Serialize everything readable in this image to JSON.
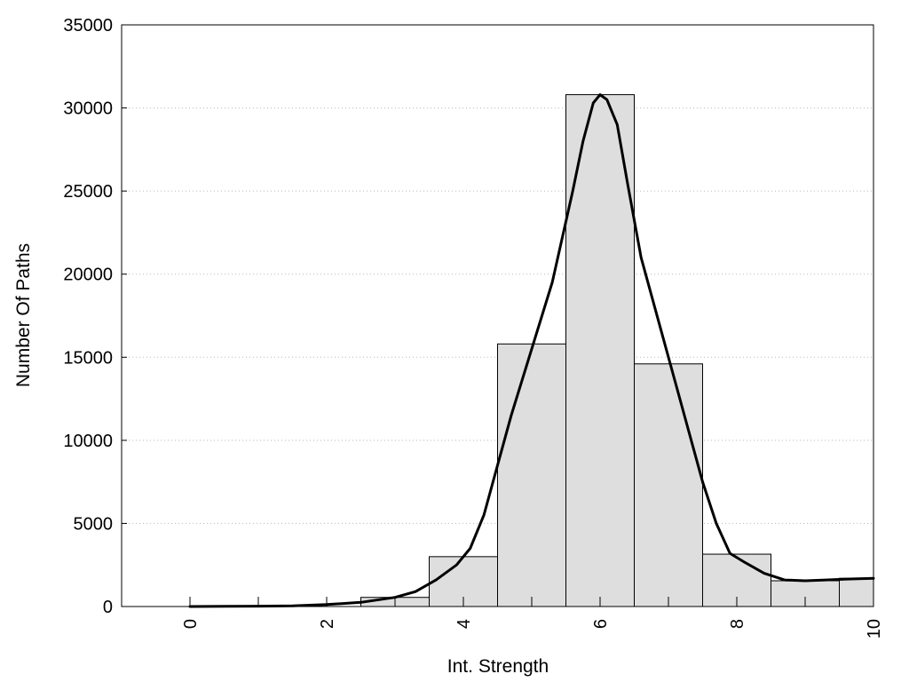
{
  "chart_data": {
    "type": "bar",
    "xlabel": "Int. Strength",
    "ylabel": "Number Of Paths",
    "xlim": [
      -1,
      10
    ],
    "ylim": [
      0,
      35000
    ],
    "xticks": [
      "0",
      "2",
      "4",
      "6",
      "8",
      "10"
    ],
    "yticks": [
      "0",
      "5000",
      "10000",
      "15000",
      "20000",
      "25000",
      "30000",
      "35000"
    ],
    "grid": "horizontal-dotted",
    "bar_color": "#dedede",
    "bars": [
      {
        "x": 0,
        "value": 0
      },
      {
        "x": 1,
        "value": 0
      },
      {
        "x": 2,
        "value": 0
      },
      {
        "x": 3,
        "value": 550
      },
      {
        "x": 4,
        "value": 3000
      },
      {
        "x": 5,
        "value": 15800
      },
      {
        "x": 6,
        "value": 30800
      },
      {
        "x": 7,
        "value": 14600
      },
      {
        "x": 8,
        "value": 3150
      },
      {
        "x": 9,
        "value": 1550
      },
      {
        "x": 10,
        "value": 1700
      }
    ],
    "curve": {
      "x": [
        0,
        1,
        1.5,
        2,
        2.5,
        3,
        3.3,
        3.6,
        3.9,
        4.1,
        4.3,
        4.5,
        4.7,
        5.0,
        5.3,
        5.6,
        5.75,
        5.9,
        6.0,
        6.1,
        6.25,
        6.4,
        6.6,
        6.9,
        7.2,
        7.5,
        7.7,
        7.9,
        8.1,
        8.4,
        8.7,
        9.0,
        9.3,
        9.6,
        10.0
      ],
      "y": [
        0,
        20,
        40,
        120,
        250,
        550,
        900,
        1600,
        2500,
        3500,
        5500,
        8500,
        11500,
        15500,
        19500,
        25000,
        28000,
        30300,
        30800,
        30500,
        29000,
        25500,
        21000,
        16500,
        12000,
        7500,
        5000,
        3200,
        2700,
        2000,
        1600,
        1550,
        1600,
        1650,
        1700
      ]
    }
  }
}
